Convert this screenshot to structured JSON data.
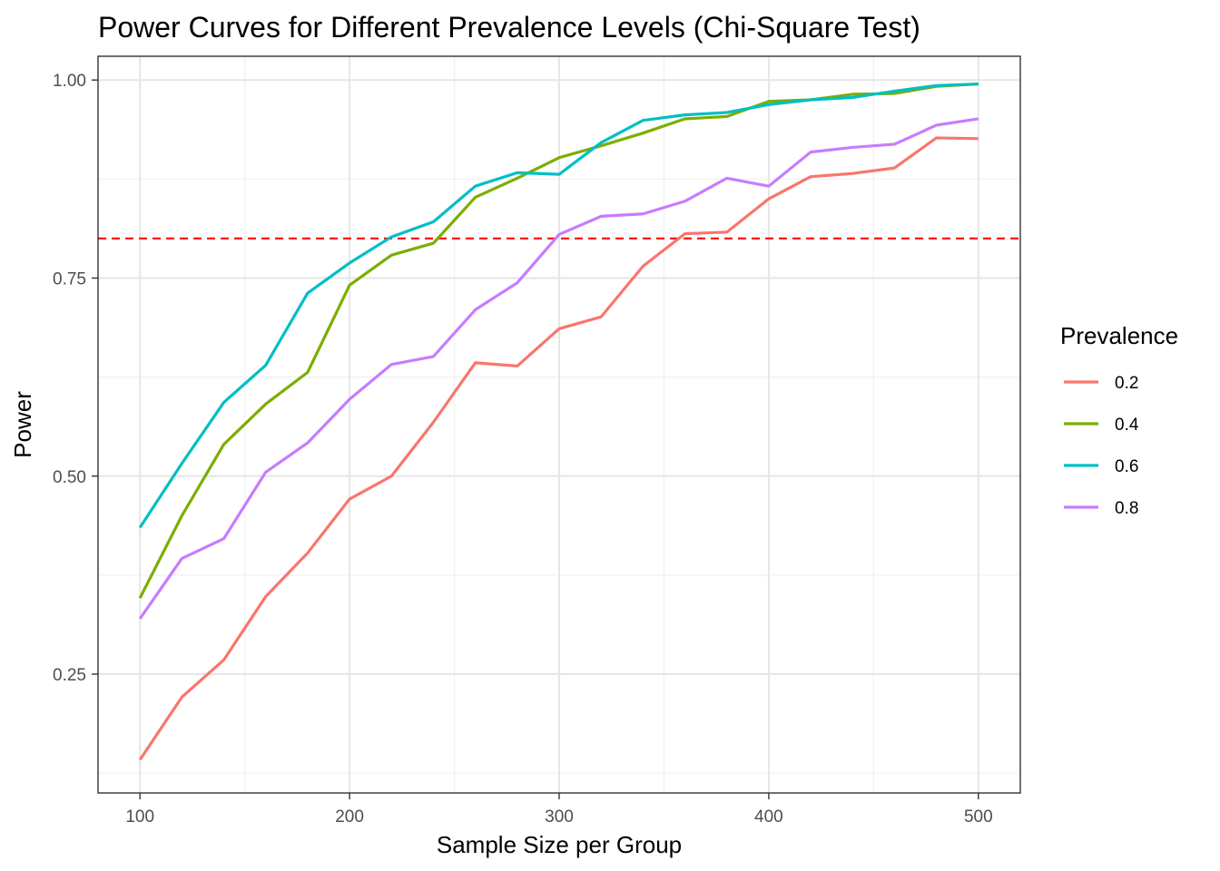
{
  "chart_data": {
    "type": "line",
    "title": "Power Curves for Different Prevalence Levels (Chi-Square Test)",
    "xlabel": "Sample Size per Group",
    "ylabel": "Power",
    "xlim": [
      80,
      520
    ],
    "ylim": [
      0.1,
      1.03
    ],
    "x_ticks": [
      100,
      200,
      300,
      400,
      500
    ],
    "x_tick_labels": [
      "100",
      "200",
      "300",
      "400",
      "500"
    ],
    "y_ticks": [
      0.25,
      0.5,
      0.75,
      1.0
    ],
    "y_tick_labels": [
      "0.25",
      "0.50",
      "0.75",
      "1.00"
    ],
    "grid": true,
    "reference_line": {
      "y": 0.8,
      "color": "#ff0000",
      "style": "dashed"
    },
    "legend": {
      "title": "Prevalence",
      "position": "right"
    },
    "x": [
      100,
      120,
      140,
      160,
      180,
      200,
      220,
      240,
      260,
      280,
      300,
      320,
      340,
      360,
      380,
      400,
      420,
      440,
      460,
      480,
      500
    ],
    "series": [
      {
        "name": "0.2",
        "color": "#F8766D",
        "values": [
          0.142,
          0.221,
          0.268,
          0.348,
          0.403,
          0.471,
          0.5,
          0.568,
          0.643,
          0.639,
          0.686,
          0.701,
          0.765,
          0.806,
          0.808,
          0.85,
          0.878,
          0.882,
          0.889,
          0.927,
          0.926
        ]
      },
      {
        "name": "0.4",
        "color": "#7CAE00",
        "values": [
          0.346,
          0.45,
          0.54,
          0.591,
          0.631,
          0.741,
          0.779,
          0.794,
          0.852,
          0.876,
          0.902,
          0.917,
          0.933,
          0.951,
          0.954,
          0.973,
          0.975,
          0.982,
          0.983,
          0.992,
          0.995
        ]
      },
      {
        "name": "0.6",
        "color": "#00BFC4",
        "values": [
          0.435,
          0.516,
          0.593,
          0.64,
          0.731,
          0.769,
          0.802,
          0.821,
          0.866,
          0.883,
          0.881,
          0.921,
          0.949,
          0.956,
          0.959,
          0.969,
          0.975,
          0.978,
          0.986,
          0.993,
          0.995
        ]
      },
      {
        "name": "0.8",
        "color": "#C77CFF",
        "values": [
          0.32,
          0.396,
          0.421,
          0.505,
          0.542,
          0.597,
          0.641,
          0.651,
          0.71,
          0.744,
          0.805,
          0.828,
          0.831,
          0.847,
          0.876,
          0.866,
          0.909,
          0.915,
          0.919,
          0.943,
          0.951
        ]
      }
    ]
  }
}
